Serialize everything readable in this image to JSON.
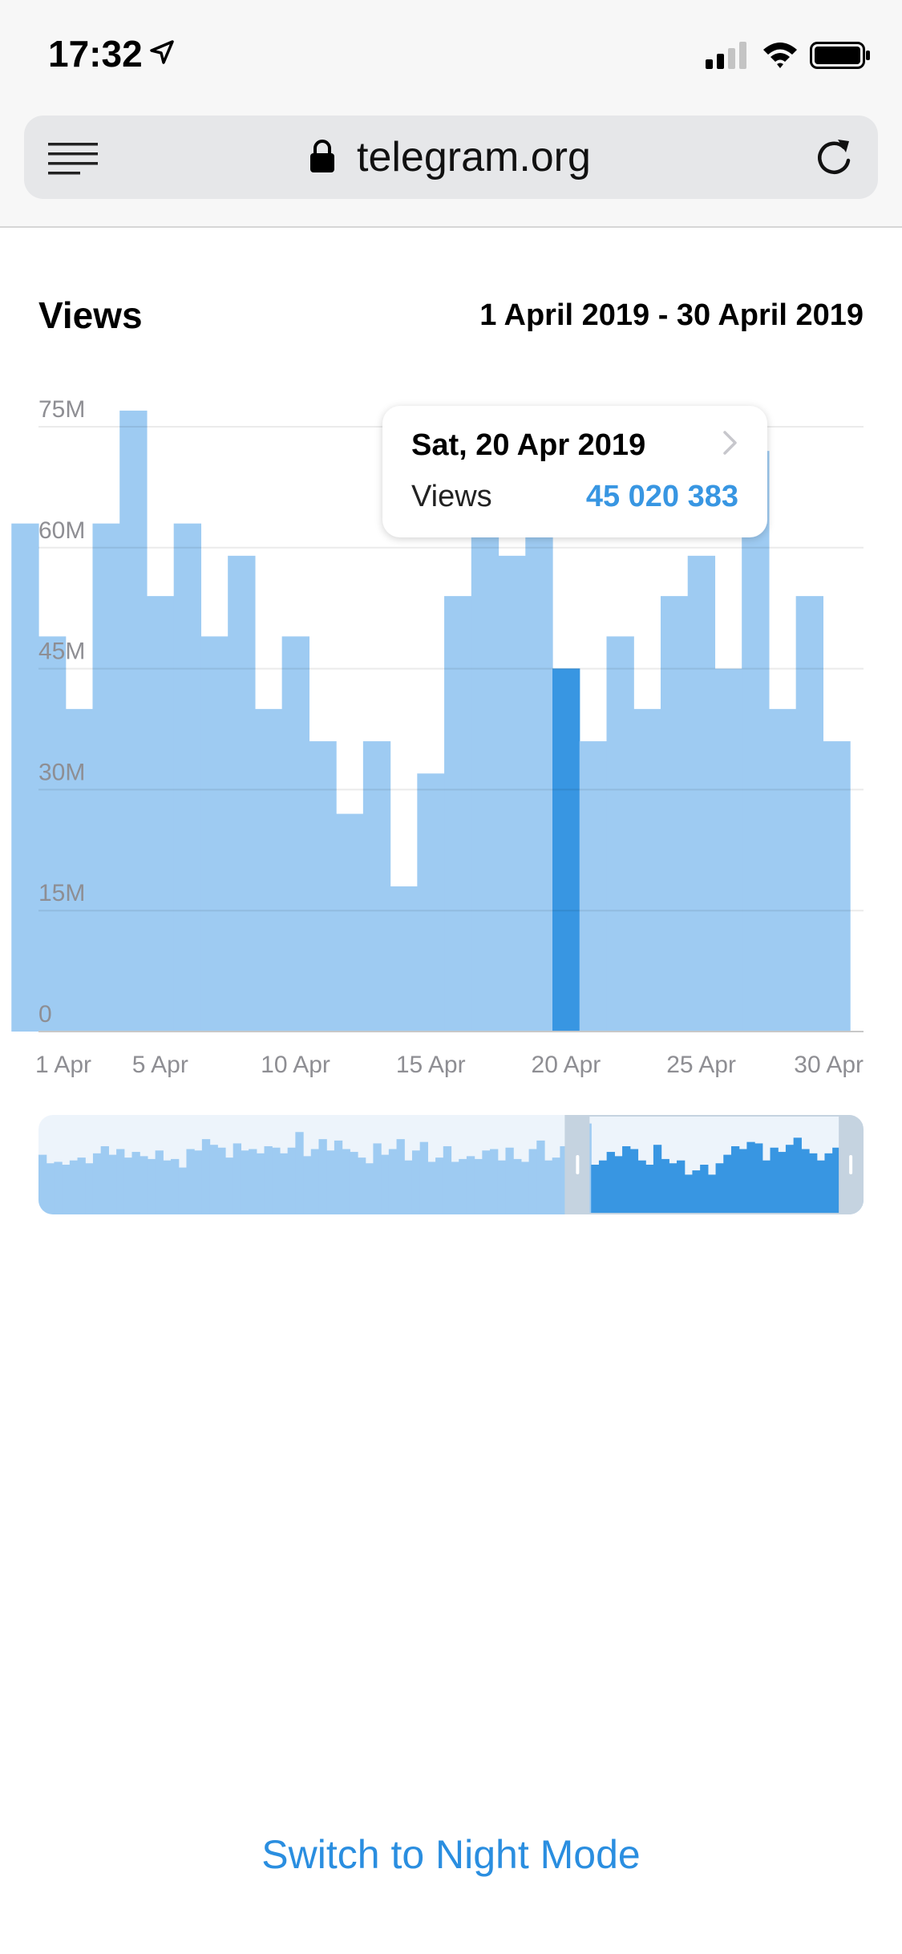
{
  "status": {
    "time": "17:32"
  },
  "browser": {
    "url": "telegram.org"
  },
  "chart_header": {
    "title": "Views",
    "date_range": "1 April 2019 - 30 April 2019"
  },
  "tooltip": {
    "date": "Sat, 20 Apr 2019",
    "label": "Views",
    "value": "45 020 383"
  },
  "footer": {
    "night_mode_label": "Switch to Night Mode"
  },
  "colors": {
    "bar": "#9ecbf2",
    "bar_selected": "#3896e2",
    "accent": "#2a8ee0",
    "grid": "#e5e5e5",
    "axis_text": "#8e8e93"
  },
  "chart_data": {
    "type": "bar",
    "title": "Views",
    "xlabel": "",
    "ylabel": "",
    "ylim": [
      0,
      75000000
    ],
    "y_ticks": [
      0,
      15000000,
      30000000,
      45000000,
      60000000,
      75000000
    ],
    "y_tick_labels": [
      "0",
      "15M",
      "30M",
      "45M",
      "60M",
      "75M"
    ],
    "x_tick_labels": [
      "1 Apr",
      "5 Apr",
      "10 Apr",
      "15 Apr",
      "20 Apr",
      "25 Apr",
      "30 Apr"
    ],
    "x_tick_days": [
      1,
      5,
      10,
      15,
      20,
      25,
      30
    ],
    "visible_day_range": [
      0.5,
      31
    ],
    "days": [
      0,
      1,
      2,
      3,
      4,
      5,
      6,
      7,
      8,
      9,
      10,
      11,
      12,
      13,
      14,
      15,
      16,
      17,
      18,
      19,
      20,
      21,
      22,
      23,
      24,
      25,
      26,
      27,
      28,
      29,
      30
    ],
    "values": [
      63000000,
      49000000,
      40000000,
      63000000,
      77000000,
      54000000,
      63000000,
      49000000,
      59000000,
      40000000,
      49000000,
      36000000,
      27000000,
      36000000,
      18000000,
      32000000,
      54000000,
      63000000,
      59000000,
      63000000,
      45020383,
      36000000,
      49000000,
      40000000,
      54000000,
      59000000,
      45000000,
      72000000,
      40000000,
      54000000,
      36000000
    ],
    "selected": {
      "day": 20,
      "date": "Sat, 20 Apr 2019",
      "value": 45020383
    },
    "overview": {
      "values": [
        42,
        36,
        37,
        35,
        38,
        40,
        36,
        43,
        48,
        42,
        46,
        40,
        44,
        41,
        39,
        45,
        38,
        39,
        33,
        46,
        45,
        53,
        49,
        47,
        40,
        50,
        45,
        46,
        43,
        48,
        47,
        43,
        47,
        58,
        41,
        46,
        53,
        45,
        52,
        46,
        44,
        40,
        36,
        50,
        42,
        46,
        53,
        38,
        45,
        51,
        37,
        40,
        48,
        37,
        39,
        41,
        39,
        45,
        46,
        38,
        47,
        39,
        37,
        46,
        52,
        38,
        40,
        48,
        52,
        41,
        64,
        35,
        38,
        44,
        41,
        48,
        46,
        38,
        35,
        49,
        39,
        36,
        38,
        28,
        31,
        35,
        28,
        36,
        42,
        48,
        46,
        51,
        50,
        38,
        47,
        44,
        49,
        54,
        46,
        43,
        38,
        43,
        47,
        52,
        46,
        55
      ],
      "ylim": [
        0,
        70
      ],
      "window": [
        0.668,
        0.97
      ]
    }
  }
}
